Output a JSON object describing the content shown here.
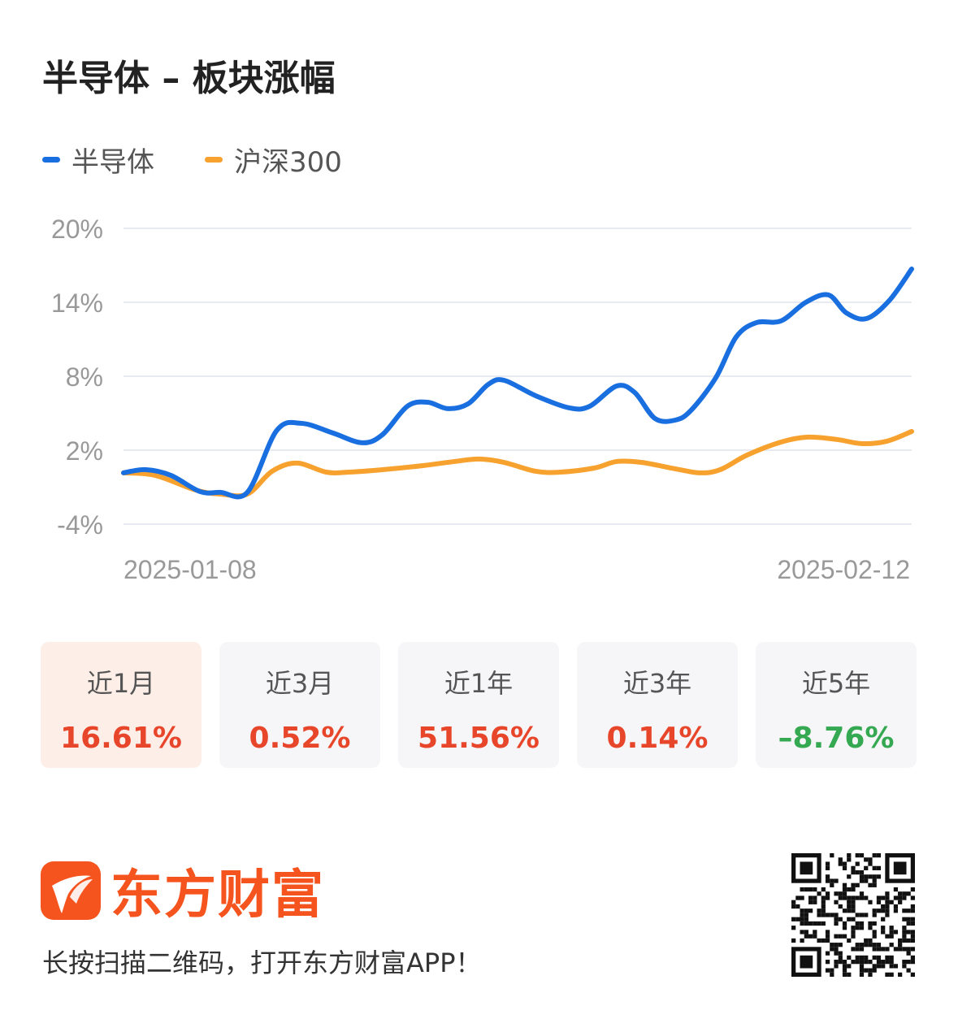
{
  "title": "半导体 – 板块涨幅",
  "colors": {
    "blue": "#1a6fe0",
    "orange": "#f7a12e",
    "up": "#e8462b",
    "down": "#35a852",
    "brand": "#f5541e"
  },
  "chart_data": {
    "type": "line",
    "title": "半导体 – 板块涨幅",
    "xlabel": "",
    "ylabel": "",
    "x_tick_labels": [
      "2025-01-08",
      "2025-02-12"
    ],
    "x_unit": "approx. days from 2025-01-08",
    "xlim": [
      0,
      35
    ],
    "ylim": [
      -4,
      20
    ],
    "y_ticks": [
      20,
      14,
      8,
      2,
      -4
    ],
    "y_tick_labels": [
      "20%",
      "14%",
      "8%",
      "2%",
      "-4%"
    ],
    "grid": true,
    "legend_placement": "top-left",
    "series": [
      {
        "name": "半导体",
        "color": "#1a6fe0",
        "x": [
          0,
          1.0,
          2.1,
          3.4,
          4.3,
          5.5,
          6.8,
          7.9,
          9.3,
          10.6,
          11.5,
          12.6,
          13.5,
          14.4,
          15.3,
          16.2,
          16.9,
          18.3,
          19.8,
          20.7,
          21.9,
          22.7,
          23.6,
          24.5,
          25.2,
          26.3,
          27.2,
          28.1,
          29.2,
          30.3,
          31.3,
          32.1,
          33.0,
          34.0,
          35
        ],
        "y": [
          0.16,
          0.42,
          -0.04,
          -1.36,
          -1.42,
          -1.42,
          3.59,
          4.18,
          3.39,
          2.6,
          3.26,
          5.56,
          5.89,
          5.37,
          5.76,
          7.34,
          7.67,
          6.42,
          5.43,
          5.56,
          7.21,
          6.68,
          4.57,
          4.44,
          5.23,
          7.87,
          11.17,
          12.35,
          12.49,
          14.0,
          14.6,
          13.14,
          12.68,
          14.13,
          16.7
        ]
      },
      {
        "name": "沪深300",
        "color": "#f7a12e",
        "x": [
          0,
          1.4,
          3.2,
          4.3,
          5.5,
          6.6,
          7.7,
          9.0,
          10.0,
          11.5,
          13.3,
          14.7,
          15.8,
          16.9,
          18.3,
          19.4,
          20.9,
          21.9,
          23.0,
          24.5,
          25.6,
          26.5,
          27.7,
          29.2,
          30.4,
          31.7,
          32.8,
          33.9,
          35
        ],
        "y": [
          0.16,
          -0.04,
          -1.23,
          -1.56,
          -1.56,
          0.29,
          0.95,
          0.22,
          0.22,
          0.42,
          0.75,
          1.08,
          1.28,
          1.01,
          0.29,
          0.22,
          0.55,
          1.08,
          1.01,
          0.49,
          0.16,
          0.42,
          1.61,
          2.66,
          3.06,
          2.86,
          2.53,
          2.73,
          3.52
        ]
      }
    ]
  },
  "periods": [
    {
      "label": "近1月",
      "value": "16.61%",
      "dir": "up"
    },
    {
      "label": "近3月",
      "value": "0.52%",
      "dir": "up"
    },
    {
      "label": "近1年",
      "value": "51.56%",
      "dir": "up"
    },
    {
      "label": "近3年",
      "value": "0.14%",
      "dir": "up"
    },
    {
      "label": "近5年",
      "value": "–8.76%",
      "dir": "down"
    }
  ],
  "brand": {
    "name": "东方财富",
    "tagline": "长按扫描二维码，打开东方财富APP！"
  }
}
